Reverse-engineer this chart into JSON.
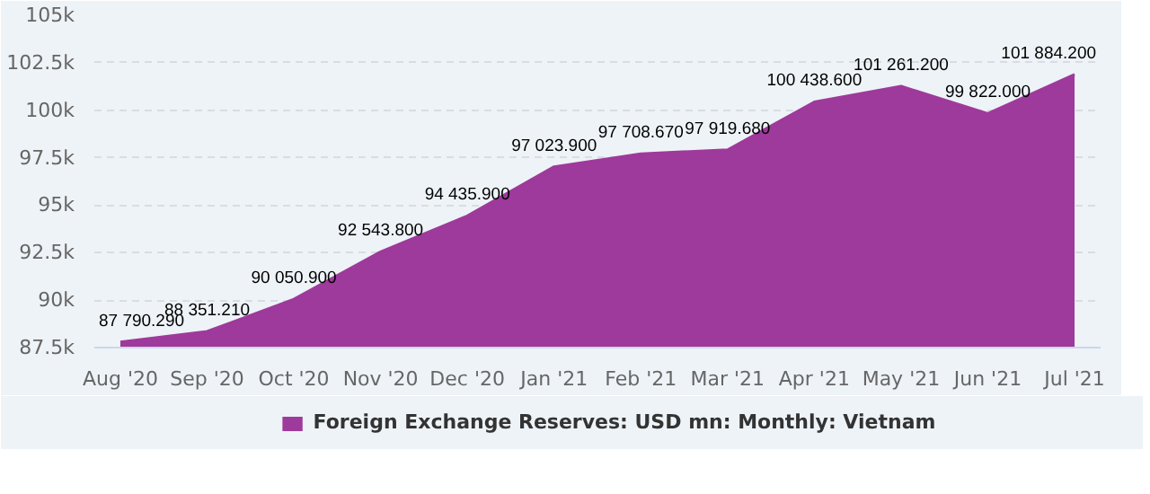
{
  "chart_data": {
    "type": "area",
    "categories": [
      "Aug '20",
      "Sep '20",
      "Oct '20",
      "Nov '20",
      "Dec '20",
      "Jan '21",
      "Feb '21",
      "Mar '21",
      "Apr '21",
      "May '21",
      "Jun '21",
      "Jul '21"
    ],
    "series": [
      {
        "name": "Foreign Exchange Reserves: USD mn: Monthly: Vietnam",
        "color": "#9e3a9b",
        "values": [
          87790.29,
          88351.21,
          90050.9,
          92543.8,
          94435.9,
          97023.9,
          97708.67,
          97919.68,
          100438.6,
          101261.2,
          99822.0,
          101884.2
        ],
        "value_labels": [
          "87 790.290",
          "88 351.210",
          "90 050.900",
          "92 543.800",
          "94 435.900",
          "97 023.900",
          "97 708.670",
          "97 919.680",
          "100 438.600",
          "101 261.200",
          "99 822.000",
          "101 884.200"
        ]
      }
    ],
    "ylim": [
      87500,
      105000
    ],
    "yticks": [
      {
        "value": 87500,
        "label": "87.5k"
      },
      {
        "value": 90000,
        "label": "90k"
      },
      {
        "value": 92500,
        "label": "92.5k"
      },
      {
        "value": 95000,
        "label": "95k"
      },
      {
        "value": 97500,
        "label": "97.5k"
      },
      {
        "value": 100000,
        "label": "100k"
      },
      {
        "value": 102500,
        "label": "102.5k"
      },
      {
        "value": 105000,
        "label": "105k"
      }
    ],
    "grid": "y",
    "legend": "bottom"
  }
}
